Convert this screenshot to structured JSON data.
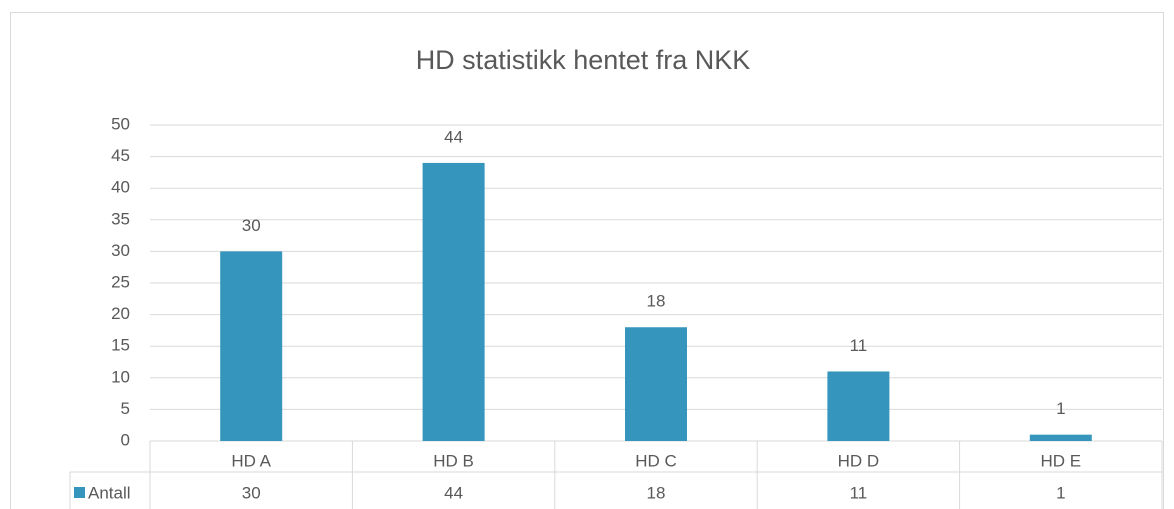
{
  "chart_data": {
    "type": "bar",
    "title": "HD statistikk hentet fra NKK",
    "categories": [
      "HD A",
      "HD B",
      "HD C",
      "HD D",
      "HD E"
    ],
    "series": [
      {
        "name": "Antall",
        "color": "#3595bc",
        "values": [
          30,
          44,
          18,
          11,
          1
        ]
      }
    ],
    "ylim": [
      0,
      50
    ],
    "yticks": [
      0,
      5,
      10,
      15,
      20,
      25,
      30,
      35,
      40,
      45,
      50
    ],
    "grid": true,
    "data_table": true
  }
}
